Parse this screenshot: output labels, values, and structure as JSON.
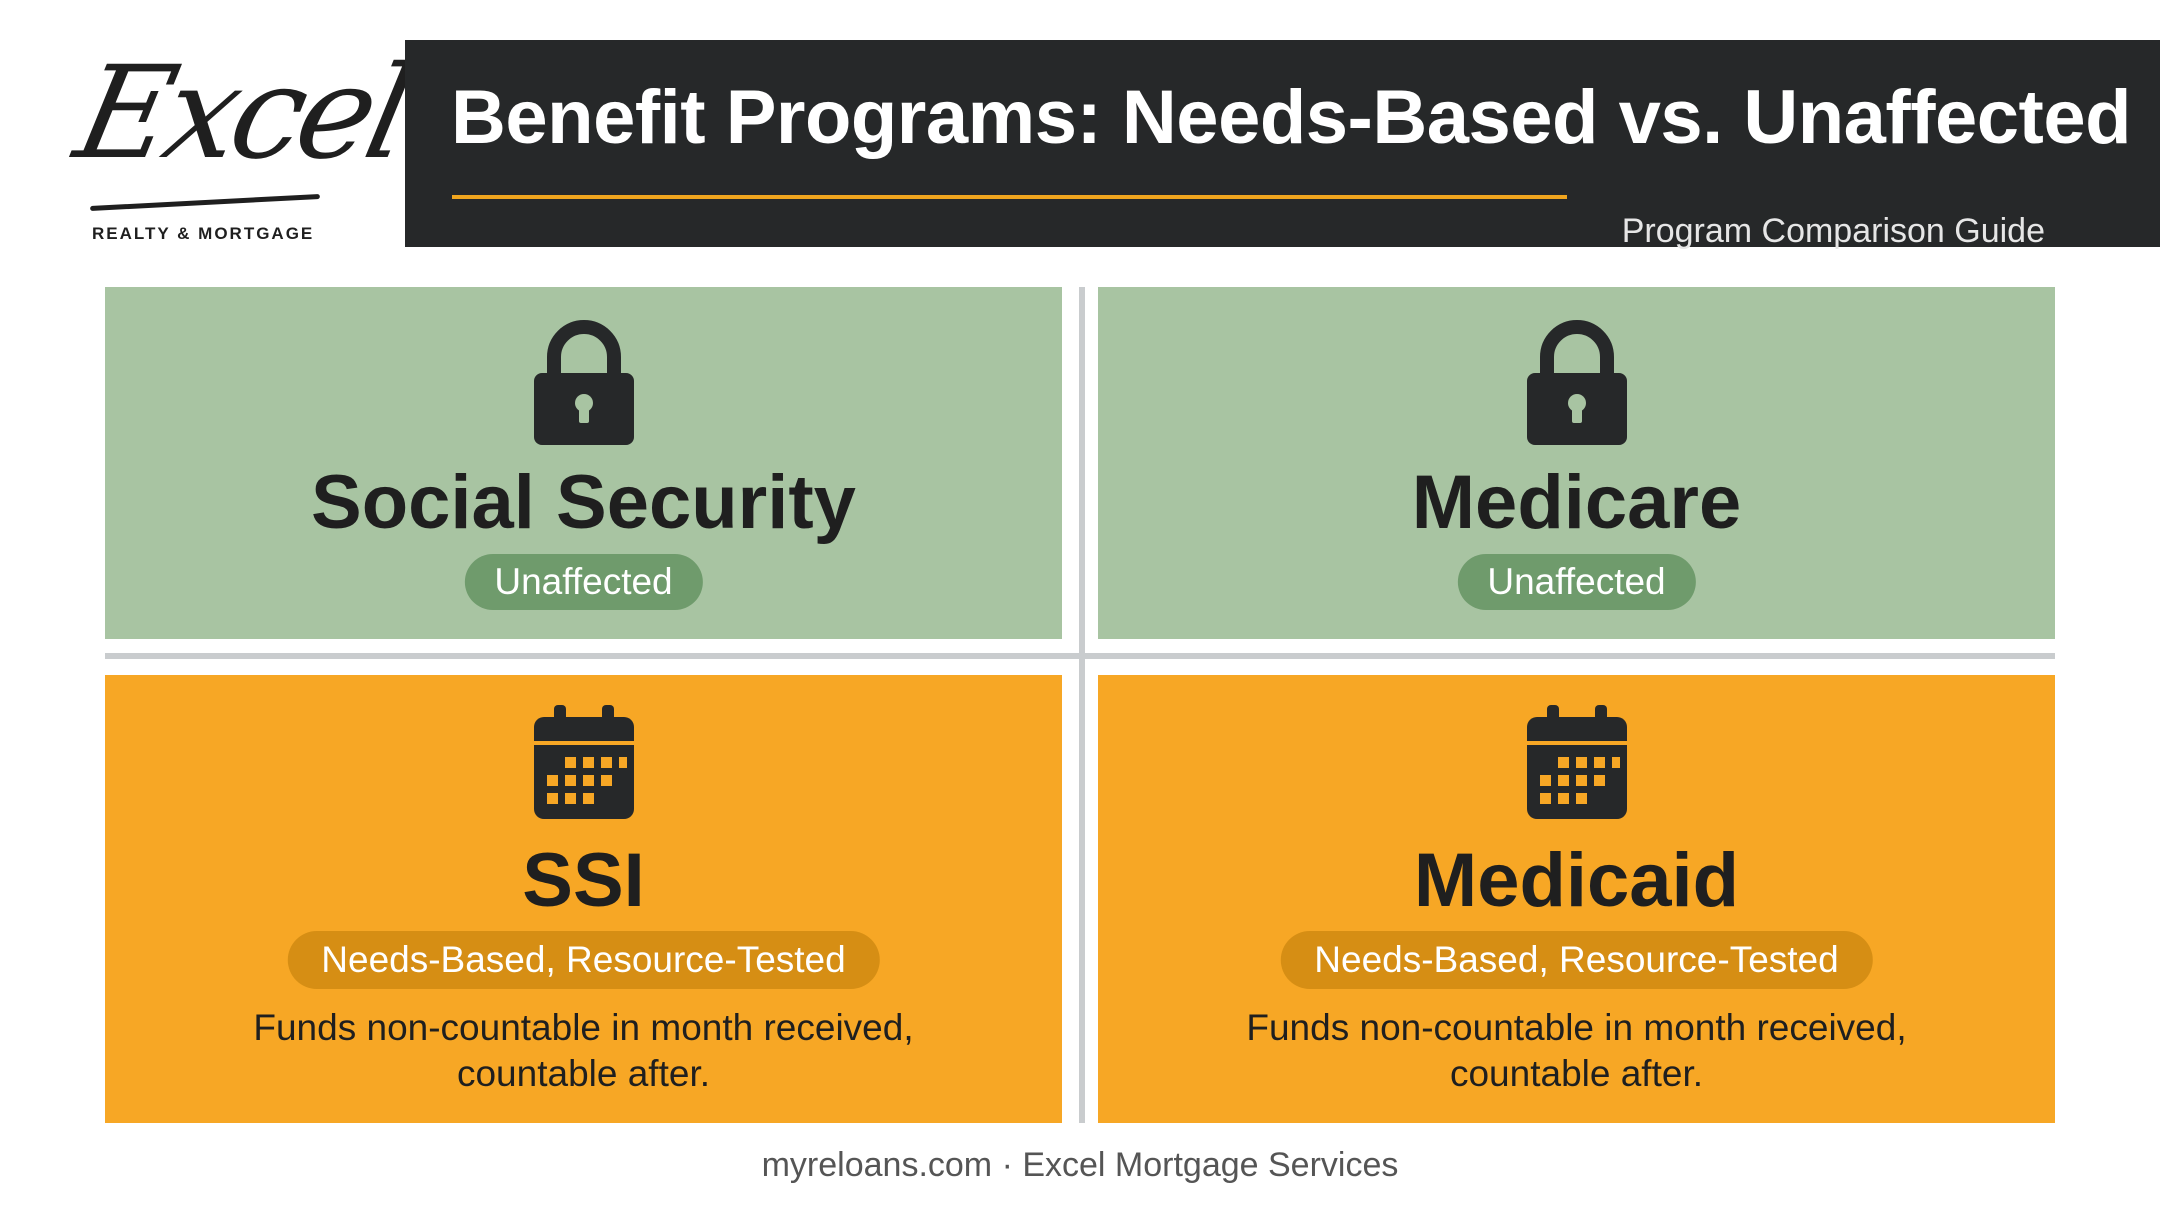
{
  "logo": {
    "script_text": "Excel",
    "subtitle": "REALTY & MORTGAGE"
  },
  "header": {
    "title": "Benefit Programs: Needs-Based vs. Unaffected",
    "subtitle": "Program Comparison Guide"
  },
  "colors": {
    "banner": "#262829",
    "accent_line": "#f0a51e",
    "green_card": "#a8c4a2",
    "green_pill": "#6f9b6c",
    "orange_card": "#f7a725",
    "orange_pill": "#d68e14",
    "icon": "#262829"
  },
  "cards": [
    {
      "icon": "lock-icon",
      "title": "Social Security",
      "badge": "Unaffected",
      "note_line1": "",
      "note_line2": ""
    },
    {
      "icon": "lock-icon",
      "title": "Medicare",
      "badge": "Unaffected",
      "note_line1": "",
      "note_line2": ""
    },
    {
      "icon": "calendar-icon",
      "title": "SSI",
      "badge": "Needs-Based, Resource-Tested",
      "note_line1": "Funds non-countable in month received,",
      "note_line2": "countable after."
    },
    {
      "icon": "calendar-icon",
      "title": "Medicaid",
      "badge": "Needs-Based, Resource-Tested",
      "note_line1": "Funds non-countable in month received,",
      "note_line2": "countable after."
    }
  ],
  "footer": {
    "text": "myreloans.com · Excel Mortgage Services"
  }
}
